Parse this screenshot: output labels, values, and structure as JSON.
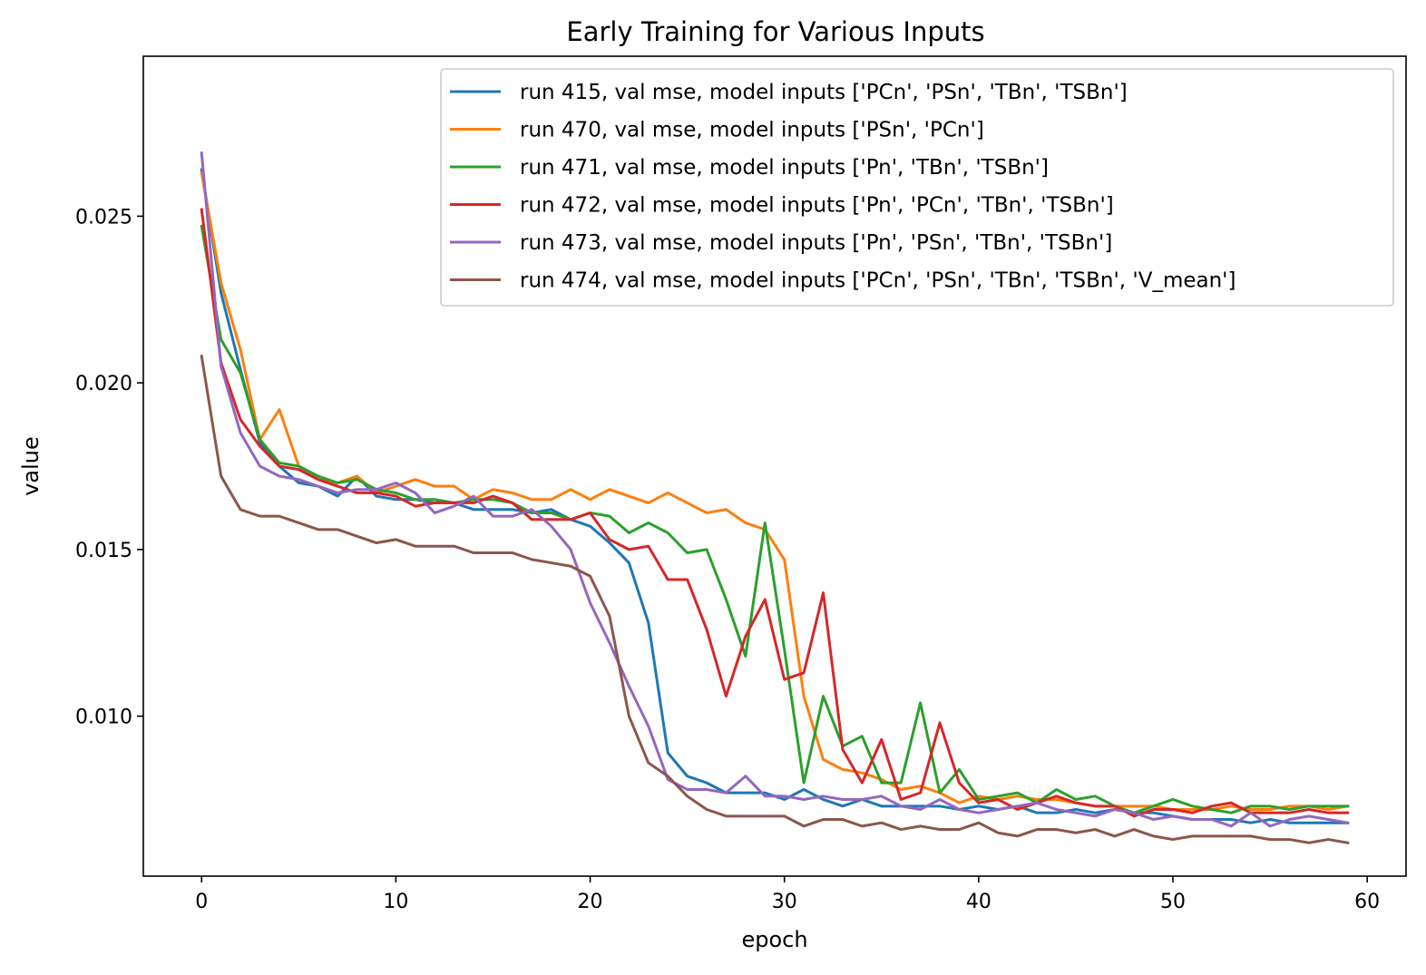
{
  "chart_data": {
    "type": "line",
    "title": "Early Training for Various Inputs",
    "xlabel": "epoch",
    "ylabel": "value",
    "xlim": [
      -3,
      62
    ],
    "ylim": [
      0.0052,
      0.0298
    ],
    "xticks": [
      0,
      10,
      20,
      30,
      40,
      50,
      60
    ],
    "xtick_labels": [
      "0",
      "10",
      "20",
      "30",
      "40",
      "50",
      "60"
    ],
    "yticks": [
      0.01,
      0.015,
      0.02,
      0.025
    ],
    "ytick_labels": [
      "0.010",
      "0.015",
      "0.020",
      "0.025"
    ],
    "grid": false,
    "legend_position": "top-right",
    "series": [
      {
        "name": "run 415, val mse, model inputs ['PCn', 'PSn', 'TBn', 'TSBn']",
        "color": "#1f77b4",
        "values": [
          0.0264,
          0.0227,
          0.0204,
          0.0182,
          0.0175,
          0.017,
          0.0169,
          0.0166,
          0.0172,
          0.0166,
          0.0165,
          0.0165,
          0.0164,
          0.0164,
          0.0162,
          0.0162,
          0.0162,
          0.0161,
          0.0162,
          0.0159,
          0.0157,
          0.0152,
          0.0146,
          0.0128,
          0.0089,
          0.0082,
          0.008,
          0.0077,
          0.0077,
          0.0077,
          0.0075,
          0.0078,
          0.0075,
          0.0073,
          0.0075,
          0.0073,
          0.0073,
          0.0073,
          0.0073,
          0.0072,
          0.0073,
          0.0072,
          0.0073,
          0.0071,
          0.0071,
          0.0072,
          0.0071,
          0.0072,
          0.0071,
          0.0071,
          0.007,
          0.0069,
          0.0069,
          0.0069,
          0.0068,
          0.0069,
          0.0068,
          0.0068,
          0.0068,
          0.0068
        ]
      },
      {
        "name": "run 470, val mse, model inputs ['PSn', 'PCn']",
        "color": "#ff7f0e",
        "values": [
          0.0263,
          0.023,
          0.021,
          0.0183,
          0.0192,
          0.0175,
          0.0171,
          0.017,
          0.0172,
          0.0167,
          0.0169,
          0.0171,
          0.0169,
          0.0169,
          0.0165,
          0.0168,
          0.0167,
          0.0165,
          0.0165,
          0.0168,
          0.0165,
          0.0168,
          0.0166,
          0.0164,
          0.0167,
          0.0164,
          0.0161,
          0.0162,
          0.0158,
          0.0156,
          0.0147,
          0.0106,
          0.0087,
          0.0084,
          0.0083,
          0.0081,
          0.0078,
          0.0079,
          0.0077,
          0.0074,
          0.0076,
          0.0075,
          0.0076,
          0.0075,
          0.0075,
          0.0074,
          0.0073,
          0.0073,
          0.0073,
          0.0073,
          0.0072,
          0.0072,
          0.0072,
          0.0073,
          0.0072,
          0.0072,
          0.0073,
          0.0073,
          0.0072,
          0.0073
        ]
      },
      {
        "name": "run 471, val mse, model inputs ['Pn', 'TBn', 'TSBn']",
        "color": "#2ca02c",
        "values": [
          0.0247,
          0.0213,
          0.0203,
          0.0183,
          0.0176,
          0.0175,
          0.0172,
          0.017,
          0.0171,
          0.0168,
          0.0167,
          0.0165,
          0.0165,
          0.0164,
          0.0165,
          0.0165,
          0.0164,
          0.0161,
          0.0161,
          0.0159,
          0.0161,
          0.016,
          0.0155,
          0.0158,
          0.0155,
          0.0149,
          0.015,
          0.0135,
          0.0118,
          0.0158,
          0.012,
          0.008,
          0.0106,
          0.0091,
          0.0094,
          0.008,
          0.008,
          0.0104,
          0.0077,
          0.0084,
          0.0075,
          0.0076,
          0.0077,
          0.0074,
          0.0078,
          0.0075,
          0.0076,
          0.0073,
          0.0071,
          0.0073,
          0.0075,
          0.0073,
          0.0072,
          0.0071,
          0.0073,
          0.0073,
          0.0072,
          0.0073,
          0.0073,
          0.0073
        ]
      },
      {
        "name": "run 472, val mse, model inputs ['Pn', 'PCn', 'TBn', 'TSBn']",
        "color": "#d62728",
        "values": [
          0.0252,
          0.0206,
          0.0189,
          0.0181,
          0.0175,
          0.0174,
          0.0171,
          0.0169,
          0.0167,
          0.0167,
          0.0166,
          0.0163,
          0.0164,
          0.0164,
          0.0164,
          0.0166,
          0.0164,
          0.0159,
          0.0159,
          0.0159,
          0.0161,
          0.0153,
          0.015,
          0.0151,
          0.0141,
          0.0141,
          0.0126,
          0.0106,
          0.0124,
          0.0135,
          0.0111,
          0.0113,
          0.0137,
          0.009,
          0.008,
          0.0093,
          0.0075,
          0.0077,
          0.0098,
          0.008,
          0.0074,
          0.0075,
          0.0072,
          0.0074,
          0.0076,
          0.0074,
          0.0073,
          0.0073,
          0.007,
          0.0072,
          0.0072,
          0.0071,
          0.0073,
          0.0074,
          0.0071,
          0.0071,
          0.0071,
          0.0072,
          0.0071,
          0.0071
        ]
      },
      {
        "name": "run 473, val mse, model inputs ['Pn', 'PSn', 'TBn', 'TSBn']",
        "color": "#9467bd",
        "values": [
          0.0269,
          0.0205,
          0.0185,
          0.0175,
          0.0172,
          0.0171,
          0.0169,
          0.0167,
          0.0168,
          0.0168,
          0.017,
          0.0167,
          0.0161,
          0.0163,
          0.0166,
          0.016,
          0.016,
          0.0162,
          0.0157,
          0.015,
          0.0134,
          0.0122,
          0.0109,
          0.0097,
          0.0081,
          0.0078,
          0.0078,
          0.0077,
          0.0082,
          0.0076,
          0.0076,
          0.0075,
          0.0076,
          0.0075,
          0.0075,
          0.0076,
          0.0073,
          0.0072,
          0.0075,
          0.0072,
          0.0071,
          0.0072,
          0.0073,
          0.0074,
          0.0072,
          0.0071,
          0.007,
          0.0072,
          0.0071,
          0.0069,
          0.007,
          0.0069,
          0.0069,
          0.0067,
          0.0071,
          0.0067,
          0.0069,
          0.007,
          0.0069,
          0.0068
        ]
      },
      {
        "name": "run 474, val mse, model inputs ['PCn', 'PSn', 'TBn', 'TSBn', 'V_mean']",
        "color": "#8c564b",
        "values": [
          0.0208,
          0.0172,
          0.0162,
          0.016,
          0.016,
          0.0158,
          0.0156,
          0.0156,
          0.0154,
          0.0152,
          0.0153,
          0.0151,
          0.0151,
          0.0151,
          0.0149,
          0.0149,
          0.0149,
          0.0147,
          0.0146,
          0.0145,
          0.0142,
          0.013,
          0.01,
          0.0086,
          0.0082,
          0.0076,
          0.0072,
          0.007,
          0.007,
          0.007,
          0.007,
          0.0067,
          0.0069,
          0.0069,
          0.0067,
          0.0068,
          0.0066,
          0.0067,
          0.0066,
          0.0066,
          0.0068,
          0.0065,
          0.0064,
          0.0066,
          0.0066,
          0.0065,
          0.0066,
          0.0064,
          0.0066,
          0.0064,
          0.0063,
          0.0064,
          0.0064,
          0.0064,
          0.0064,
          0.0063,
          0.0063,
          0.0062,
          0.0063,
          0.0062
        ]
      }
    ]
  }
}
